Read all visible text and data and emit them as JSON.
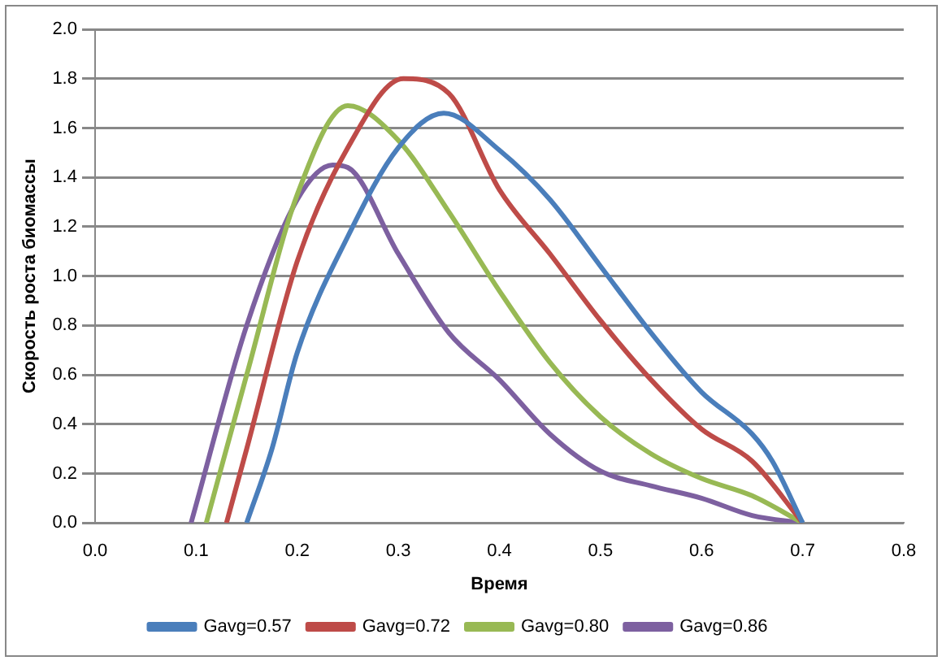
{
  "chart_data": {
    "type": "line",
    "xlabel": "Время",
    "ylabel": "Скорость роста биомассы",
    "xlim": [
      0,
      0.8
    ],
    "xticks": [
      {
        "value": 0,
        "label": "0.0"
      },
      0.1,
      0.2,
      0.3,
      0.4,
      0.5,
      0.6,
      0.7,
      {
        "value": 0.8,
        "label": "0.8"
      }
    ],
    "ylim": [
      0,
      2
    ],
    "yticks": [
      {
        "value": 0,
        "label": "0.0"
      },
      0.2,
      0.4,
      0.6,
      0.8,
      {
        "value": 1,
        "label": "1.0"
      },
      1.2,
      1.4,
      1.6,
      1.8,
      {
        "value": 2,
        "label": "2.0"
      }
    ],
    "grid": "y",
    "legend": "bottom",
    "marker": "none",
    "line_style": "solid",
    "series": [
      {
        "name": "Gavg=0.57",
        "color": "#4a7ebb",
        "x": [
          0.15,
          0.175,
          0.2,
          0.25,
          0.3,
          0.345,
          0.4,
          0.45,
          0.5,
          0.55,
          0.6,
          0.65,
          0.67,
          0.7
        ],
        "values": [
          0,
          0.3,
          0.69,
          1.16,
          1.52,
          1.66,
          1.51,
          1.31,
          1.04,
          0.77,
          0.53,
          0.36,
          0.25,
          0
        ]
      },
      {
        "name": "Gavg=0.72",
        "color": "#be4b48",
        "x": [
          0.13,
          0.15,
          0.2,
          0.25,
          0.305,
          0.35,
          0.4,
          0.45,
          0.5,
          0.55,
          0.6,
          0.65,
          0.7
        ],
        "values": [
          0,
          0.3,
          1.06,
          1.52,
          1.8,
          1.74,
          1.35,
          1.09,
          0.82,
          0.58,
          0.38,
          0.25,
          0
        ]
      },
      {
        "name": "Gavg=0.80",
        "color": "#98b954",
        "x": [
          0.11,
          0.15,
          0.2,
          0.25,
          0.3,
          0.35,
          0.4,
          0.45,
          0.5,
          0.55,
          0.6,
          0.65,
          0.7
        ],
        "values": [
          0,
          0.6,
          1.33,
          1.69,
          1.55,
          1.26,
          0.94,
          0.65,
          0.43,
          0.28,
          0.18,
          0.11,
          0
        ]
      },
      {
        "name": "Gavg=0.86",
        "color": "#7d60a0",
        "x": [
          0.095,
          0.15,
          0.2,
          0.235,
          0.25,
          0.3,
          0.35,
          0.4,
          0.45,
          0.5,
          0.55,
          0.6,
          0.65,
          0.7
        ],
        "values": [
          0,
          0.8,
          1.31,
          1.45,
          1.44,
          1.09,
          0.77,
          0.58,
          0.36,
          0.21,
          0.15,
          0.1,
          0.03,
          0
        ]
      }
    ]
  }
}
